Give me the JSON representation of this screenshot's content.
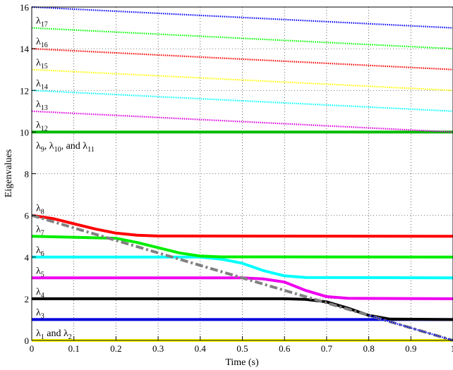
{
  "chart_data": {
    "type": "line",
    "title": "",
    "xlabel": "Time (s)",
    "ylabel": "Eigenvalues",
    "xlim": [
      0,
      1
    ],
    "ylim": [
      0,
      16
    ],
    "grid": true,
    "xticks": [
      0,
      0.1,
      0.2,
      0.3,
      0.4,
      0.5,
      0.6,
      0.7,
      0.8,
      0.9,
      1
    ],
    "xtick_labels": [
      "0",
      "0.1",
      "0.2",
      "0.3",
      "0.4",
      "0.5",
      "0.6",
      "0.7",
      "0.8",
      "0.9",
      "1"
    ],
    "yticks": [
      0,
      2,
      4,
      6,
      8,
      10,
      12,
      14,
      16
    ],
    "ytick_labels": [
      "0",
      "2",
      "4",
      "6",
      "8",
      "10",
      "12",
      "14",
      "16"
    ],
    "series": [
      {
        "color": "#ffff00",
        "style": "solid",
        "x": [
          0,
          1
        ],
        "y": [
          0,
          0
        ]
      },
      {
        "color": "#0000dd",
        "style": "solid",
        "x": [
          0,
          1
        ],
        "y": [
          1,
          1
        ]
      },
      {
        "color": "#000000",
        "style": "solid",
        "x": [
          0,
          0.6,
          0.65,
          0.7,
          0.75,
          0.8,
          0.85,
          1
        ],
        "y": [
          2,
          2,
          1.97,
          1.85,
          1.55,
          1.2,
          1.02,
          1
        ]
      },
      {
        "color": "#ee00ee",
        "style": "solid",
        "x": [
          0,
          0.5,
          0.55,
          0.6,
          0.65,
          0.7,
          0.75,
          1
        ],
        "y": [
          3,
          3,
          2.95,
          2.8,
          2.4,
          2.1,
          2.02,
          2
        ]
      },
      {
        "color": "#00ffff",
        "style": "solid",
        "x": [
          0,
          0.4,
          0.45,
          0.5,
          0.55,
          0.6,
          0.65,
          1
        ],
        "y": [
          4,
          4,
          3.9,
          3.7,
          3.35,
          3.1,
          3.02,
          3
        ]
      },
      {
        "color": "#00ee00",
        "style": "solid",
        "x": [
          0,
          0.2,
          0.25,
          0.3,
          0.35,
          0.4,
          0.45,
          1
        ],
        "y": [
          5,
          4.9,
          4.7,
          4.45,
          4.2,
          4.05,
          4.01,
          4
        ]
      },
      {
        "color": "#ff0000",
        "style": "solid",
        "x": [
          0,
          0.05,
          0.1,
          0.15,
          0.2,
          0.25,
          0.3,
          1
        ],
        "y": [
          6,
          5.85,
          5.6,
          5.35,
          5.15,
          5.05,
          5.01,
          5
        ]
      },
      {
        "color": "#808080",
        "style": "dashdot",
        "x": [
          0,
          1
        ],
        "y": [
          6,
          0
        ]
      },
      {
        "color": "#0000ff",
        "style": "dotted",
        "x": [
          0.8,
          1
        ],
        "y": [
          1.2,
          0
        ]
      },
      {
        "color": "#00bb00",
        "style": "solid",
        "x": [
          0,
          1
        ],
        "y": [
          10,
          10
        ]
      },
      {
        "color": "#dd00dd",
        "style": "dotted",
        "x": [
          0,
          1
        ],
        "y": [
          11,
          10
        ]
      },
      {
        "color": "#00ffff",
        "style": "dotted",
        "x": [
          0,
          1
        ],
        "y": [
          12,
          11
        ]
      },
      {
        "color": "#ffff00",
        "style": "dotted",
        "x": [
          0,
          1
        ],
        "y": [
          13,
          12
        ]
      },
      {
        "color": "#ff0000",
        "style": "dotted",
        "x": [
          0,
          1
        ],
        "y": [
          14,
          13
        ]
      },
      {
        "color": "#00ff00",
        "style": "dotted",
        "x": [
          0,
          1
        ],
        "y": [
          15,
          14
        ]
      },
      {
        "color": "#0000ff",
        "style": "dotted",
        "x": [
          0,
          1
        ],
        "y": [
          16,
          15
        ]
      }
    ],
    "annotations": [
      {
        "parts": [
          [
            "λ",
            ""
          ],
          [
            "1",
            "sub"
          ],
          [
            " and λ",
            ""
          ],
          [
            "2",
            "sub"
          ]
        ],
        "x": 0.01,
        "y": 0.2
      },
      {
        "parts": [
          [
            "λ",
            ""
          ],
          [
            "3",
            "sub"
          ]
        ],
        "x": 0.01,
        "y": 1.2
      },
      {
        "parts": [
          [
            "λ",
            ""
          ],
          [
            "4",
            "sub"
          ]
        ],
        "x": 0.01,
        "y": 2.2
      },
      {
        "parts": [
          [
            "λ",
            ""
          ],
          [
            "5",
            "sub"
          ]
        ],
        "x": 0.01,
        "y": 3.2
      },
      {
        "parts": [
          [
            "λ",
            ""
          ],
          [
            "6",
            "sub"
          ]
        ],
        "x": 0.01,
        "y": 4.2
      },
      {
        "parts": [
          [
            "λ",
            ""
          ],
          [
            "7",
            "sub"
          ]
        ],
        "x": 0.01,
        "y": 5.2
      },
      {
        "parts": [
          [
            "λ",
            ""
          ],
          [
            "8",
            "sub"
          ]
        ],
        "x": 0.01,
        "y": 6.2
      },
      {
        "parts": [
          [
            "λ",
            ""
          ],
          [
            "9",
            "sub"
          ],
          [
            ", λ",
            ""
          ],
          [
            "10",
            "sub"
          ],
          [
            ", and λ",
            ""
          ],
          [
            "11",
            "sub"
          ]
        ],
        "x": 0.01,
        "y": 9.2
      },
      {
        "parts": [
          [
            "λ",
            ""
          ],
          [
            "12",
            "sub"
          ]
        ],
        "x": 0.01,
        "y": 10.2
      },
      {
        "parts": [
          [
            "λ",
            ""
          ],
          [
            "13",
            "sub"
          ]
        ],
        "x": 0.01,
        "y": 11.2
      },
      {
        "parts": [
          [
            "λ",
            ""
          ],
          [
            "14",
            "sub"
          ]
        ],
        "x": 0.01,
        "y": 12.2
      },
      {
        "parts": [
          [
            "λ",
            ""
          ],
          [
            "15",
            "sub"
          ]
        ],
        "x": 0.01,
        "y": 13.2
      },
      {
        "parts": [
          [
            "λ",
            ""
          ],
          [
            "16",
            "sub"
          ]
        ],
        "x": 0.01,
        "y": 14.2
      },
      {
        "parts": [
          [
            "λ",
            ""
          ],
          [
            "17",
            "sub"
          ]
        ],
        "x": 0.01,
        "y": 15.2
      }
    ]
  }
}
